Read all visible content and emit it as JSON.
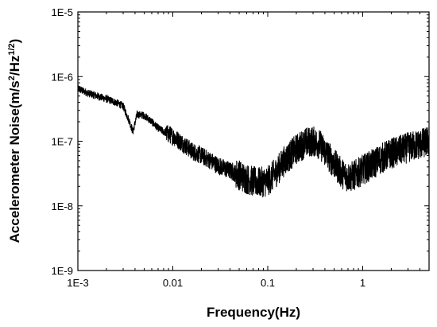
{
  "chart_data": {
    "type": "line",
    "title": "",
    "xlabel": "Frequency(Hz)",
    "ylabel_parts": {
      "pre": "Accelerometer Noise(m/s",
      "sup1": "2",
      "mid": "/Hz",
      "sup2": "1/2",
      "post": ")"
    },
    "x_scale": "log",
    "y_scale": "log",
    "xlim": [
      0.001,
      5
    ],
    "ylim": [
      1e-09,
      1e-05
    ],
    "grid": false,
    "legend": "none",
    "line_color": "#000000",
    "x_ticks": [
      {
        "value": 0.001,
        "label": "1E-3"
      },
      {
        "value": 0.01,
        "label": "0.01"
      },
      {
        "value": 0.1,
        "label": "0.1"
      },
      {
        "value": 1,
        "label": "1"
      }
    ],
    "y_ticks": [
      {
        "value": 1e-09,
        "label": "1E-9"
      },
      {
        "value": 1e-08,
        "label": "1E-8"
      },
      {
        "value": 1e-07,
        "label": "1E-7"
      },
      {
        "value": 1e-06,
        "label": "1E-6"
      },
      {
        "value": 1e-05,
        "label": "1E-5"
      }
    ],
    "series": [
      {
        "x": [
          0.001,
          0.0013,
          0.0016,
          0.002,
          0.0025,
          0.003,
          0.0035,
          0.0038,
          0.0042,
          0.005,
          0.006,
          0.007,
          0.008,
          0.01,
          0.013,
          0.016,
          0.02,
          0.025,
          0.03,
          0.04,
          0.05,
          0.06,
          0.07,
          0.08,
          0.1,
          0.12,
          0.15,
          0.2,
          0.25,
          0.3,
          0.35,
          0.4,
          0.5,
          0.6,
          0.7,
          0.8,
          1,
          1.3,
          1.6,
          2,
          2.5,
          3,
          4,
          5
        ],
        "y": [
          6.5e-07,
          5.5e-07,
          5e-07,
          4.5e-07,
          4e-07,
          3.5e-07,
          2e-07,
          1.4e-07,
          2.6e-07,
          2.5e-07,
          2e-07,
          1.6e-07,
          1.4e-07,
          1.2e-07,
          9e-08,
          7e-08,
          6e-08,
          5e-08,
          4.2e-08,
          3.5e-08,
          3e-08,
          2.6e-08,
          2.4e-08,
          2.3e-08,
          2.4e-08,
          3.2e-08,
          5e-08,
          7.5e-08,
          9.5e-08,
          1e-07,
          9e-08,
          7e-08,
          4.5e-08,
          3.2e-08,
          2.8e-08,
          2.9e-08,
          3.6e-08,
          4.5e-08,
          5.5e-08,
          6.5e-08,
          7.2e-08,
          8e-08,
          9e-08,
          1e-07
        ]
      }
    ]
  }
}
